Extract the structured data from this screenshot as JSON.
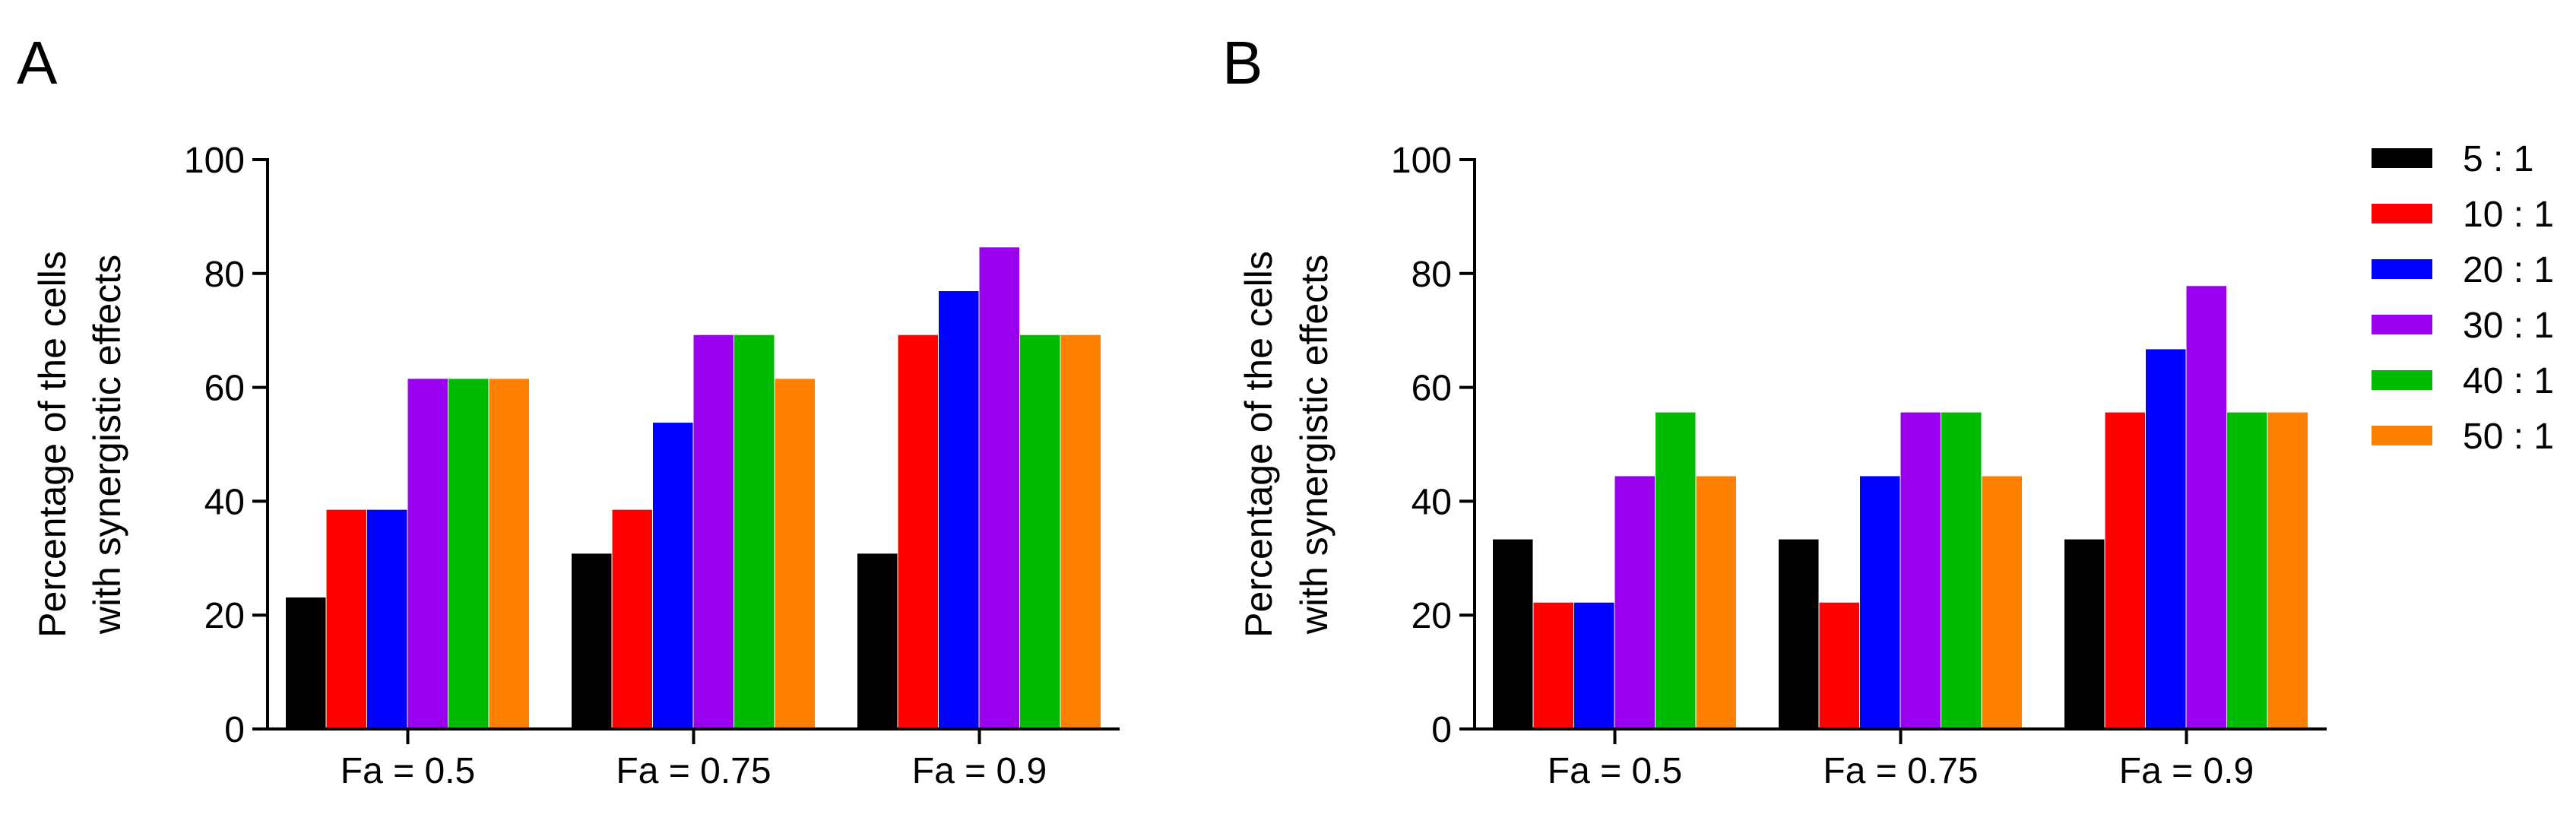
{
  "colors": {
    "5 : 1": "#000000",
    "10 : 1": "#ff0000",
    "20 : 1": "#0000ff",
    "30 : 1": "#9900ee",
    "40 : 1": "#00bb00",
    "50 : 1": "#ff8000"
  },
  "chart_data": [
    {
      "panel": "A",
      "type": "bar",
      "categories": [
        "Fa = 0.5",
        "Fa = 0.75",
        "Fa = 0.9"
      ],
      "ylabel_line1": "Percentage of the cells",
      "ylabel_line2": "with synergistic effects",
      "xlabel": "",
      "ylim": [
        0,
        100
      ],
      "yticks": [
        0,
        20,
        40,
        60,
        80,
        100
      ],
      "series": [
        {
          "name": "5 : 1",
          "values": [
            23.1,
            30.8,
            30.8
          ]
        },
        {
          "name": "10 : 1",
          "values": [
            38.5,
            38.5,
            69.2
          ]
        },
        {
          "name": "20 : 1",
          "values": [
            38.5,
            53.8,
            76.9
          ]
        },
        {
          "name": "30 : 1",
          "values": [
            61.5,
            69.2,
            84.6
          ]
        },
        {
          "name": "40 : 1",
          "values": [
            61.5,
            69.2,
            69.2
          ]
        },
        {
          "name": "50 : 1",
          "values": [
            61.5,
            61.5,
            69.2
          ]
        }
      ]
    },
    {
      "panel": "B",
      "type": "bar",
      "categories": [
        "Fa = 0.5",
        "Fa = 0.75",
        "Fa = 0.9"
      ],
      "ylabel_line1": "Percentage of the cells",
      "ylabel_line2": "with synergistic effects",
      "xlabel": "",
      "ylim": [
        0,
        100
      ],
      "yticks": [
        0,
        20,
        40,
        60,
        80,
        100
      ],
      "series": [
        {
          "name": "5 : 1",
          "values": [
            33.3,
            33.3,
            33.3
          ]
        },
        {
          "name": "10 : 1",
          "values": [
            22.2,
            22.2,
            55.6
          ]
        },
        {
          "name": "20 : 1",
          "values": [
            22.2,
            44.4,
            66.7
          ]
        },
        {
          "name": "30 : 1",
          "values": [
            44.4,
            55.6,
            77.8
          ]
        },
        {
          "name": "40 : 1",
          "values": [
            55.6,
            55.6,
            55.6
          ]
        },
        {
          "name": "50 : 1",
          "values": [
            44.4,
            44.4,
            55.6
          ]
        }
      ],
      "legend": [
        "5 : 1",
        "10 : 1",
        "20 : 1",
        "30 : 1",
        "40 : 1",
        "50 : 1"
      ],
      "legend_position": "right"
    }
  ]
}
